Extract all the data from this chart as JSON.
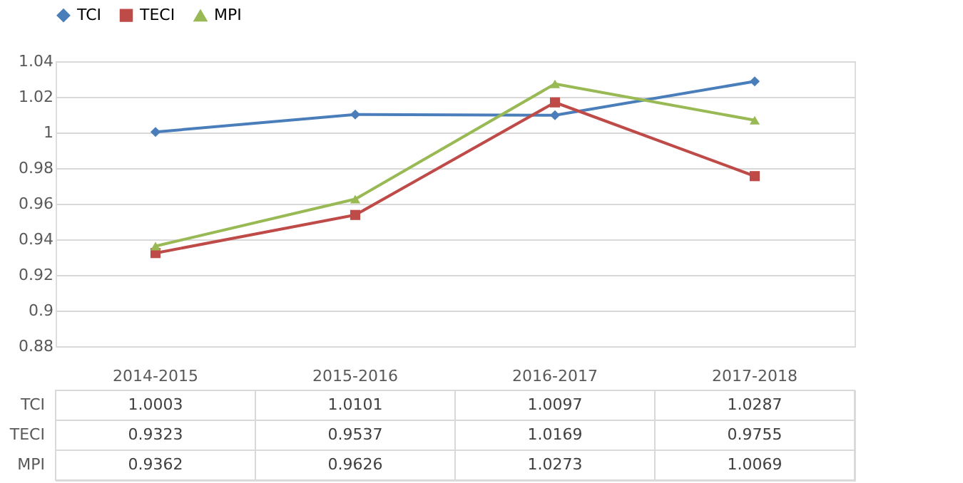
{
  "chart_data": {
    "type": "line",
    "categories": [
      "2014-2015",
      "2015-2016",
      "2016-2017",
      "2017-2018"
    ],
    "series": [
      {
        "name": "TCI",
        "color": "#4a7ebb",
        "marker": "diamond",
        "values": [
          1.0003,
          1.0101,
          1.0097,
          1.0287
        ]
      },
      {
        "name": "TECI",
        "color": "#be4b48",
        "marker": "square",
        "values": [
          0.9323,
          0.9537,
          1.0169,
          0.9755
        ]
      },
      {
        "name": "MPI",
        "color": "#98b954",
        "marker": "triangle",
        "values": [
          0.9362,
          0.9626,
          1.0273,
          1.0069
        ]
      }
    ],
    "ylim": [
      0.88,
      1.04
    ],
    "yticks": [
      0.88,
      0.9,
      0.92,
      0.94,
      0.96,
      0.98,
      1,
      1.02,
      1.04
    ],
    "grid": "y",
    "legend": "top",
    "data_labels": true,
    "line_style": "solid"
  }
}
